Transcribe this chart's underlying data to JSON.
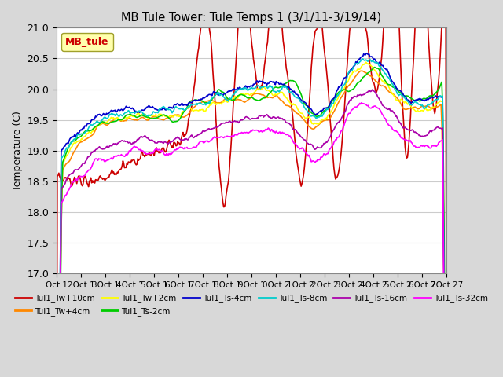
{
  "title": "MB Tule Tower: Tule Temps 1 (3/1/11-3/19/14)",
  "ylabel": "Temperature (C)",
  "ylim": [
    17.0,
    21.0
  ],
  "yticks": [
    17.0,
    17.5,
    18.0,
    18.5,
    19.0,
    19.5,
    20.0,
    20.5,
    21.0
  ],
  "fig_facecolor": "#d8d8d8",
  "plot_facecolor": "#ffffff",
  "legend_label": "MB_tule",
  "legend_label_color": "#cc0000",
  "legend_facecolor": "#ffff99",
  "legend_edgecolor": "#888800",
  "series": [
    {
      "label": "Tul1_Tw+10cm",
      "color": "#cc0000",
      "lw": 1.2
    },
    {
      "label": "Tul1_Tw+4cm",
      "color": "#ff8800",
      "lw": 1.2
    },
    {
      "label": "Tul1_Tw+2cm",
      "color": "#ffff00",
      "lw": 1.2
    },
    {
      "label": "Tul1_Ts-2cm",
      "color": "#00cc00",
      "lw": 1.2
    },
    {
      "label": "Tul1_Ts-4cm",
      "color": "#0000cc",
      "lw": 1.2
    },
    {
      "label": "Tul1_Ts-8cm",
      "color": "#00cccc",
      "lw": 1.2
    },
    {
      "label": "Tul1_Ts-16cm",
      "color": "#aa00aa",
      "lw": 1.2
    },
    {
      "label": "Tul1_Ts-32cm",
      "color": "#ff00ff",
      "lw": 1.2
    }
  ],
  "xtick_labels": [
    "Oct 1",
    "2Oct 1",
    "3Oct 1",
    "4Oct 1",
    "5Oct 1",
    "6Oct 1",
    "7Oct 1",
    "8Oct 1",
    "9Oct 1",
    "0Oct 2",
    "1Oct 2",
    "2Oct 2",
    "3Oct 2",
    "4Oct 2",
    "5Oct 2",
    "6Oct 2",
    "7Oct 27"
  ],
  "grid_color": "#cccccc",
  "n_points": 500
}
